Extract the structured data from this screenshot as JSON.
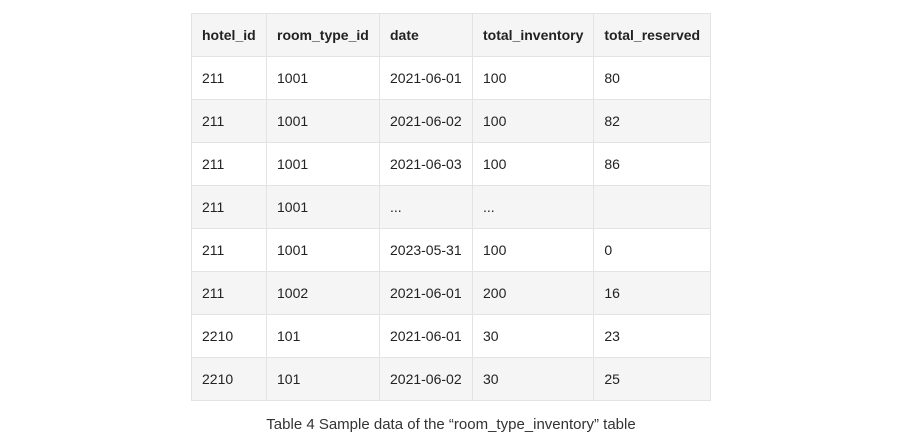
{
  "table": {
    "headers": [
      "hotel_id",
      "room_type_id",
      "date",
      "total_inventory",
      "total_reserved"
    ],
    "rows": [
      [
        "211",
        "1001",
        "2021-06-01",
        "100",
        "80"
      ],
      [
        "211",
        "1001",
        "2021-06-02",
        "100",
        "82"
      ],
      [
        "211",
        "1001",
        "2021-06-03",
        "100",
        "86"
      ],
      [
        "211",
        "1001",
        "...",
        "...",
        ""
      ],
      [
        "211",
        "1001",
        "2023-05-31",
        "100",
        "0"
      ],
      [
        "211",
        "1002",
        "2021-06-01",
        "200",
        "16"
      ],
      [
        "2210",
        "101",
        "2021-06-01",
        "30",
        "23"
      ],
      [
        "2210",
        "101",
        "2021-06-02",
        "30",
        "25"
      ]
    ]
  },
  "caption": "Table 4 Sample data of the “room_type_inventory” table"
}
